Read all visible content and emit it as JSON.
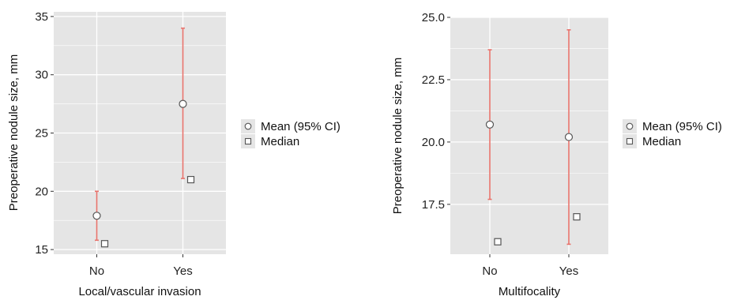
{
  "chart_data": [
    {
      "type": "scatter",
      "xlabel": "Local/vascular invasion",
      "ylabel": "Preoperative nodule size, mm",
      "categories": [
        "No",
        "Yes"
      ],
      "ylim": [
        14.6,
        35.4
      ],
      "yticks": [
        15,
        20,
        25,
        30,
        35
      ],
      "ytick_labels": [
        "15",
        "20",
        "25",
        "30",
        "35"
      ],
      "series": [
        {
          "name": "Mean (95% CI)",
          "values": [
            17.9,
            27.5
          ],
          "ci_low": [
            15.8,
            21.1
          ],
          "ci_high": [
            20.0,
            34.0
          ]
        },
        {
          "name": "Median",
          "values": [
            15.5,
            21.0
          ]
        }
      ],
      "legend_position": "right",
      "grid": true
    },
    {
      "type": "scatter",
      "xlabel": "Multifocality",
      "ylabel": "Preoperative nodule size, mm",
      "categories": [
        "No",
        "Yes"
      ],
      "ylim": [
        15.5,
        25.0
      ],
      "yticks": [
        17.5,
        20.0,
        22.5,
        25.0
      ],
      "ytick_labels": [
        "17.5",
        "20.0",
        "22.5",
        "25.0"
      ],
      "series": [
        {
          "name": "Mean (95% CI)",
          "values": [
            20.7,
            20.2
          ],
          "ci_low": [
            17.7,
            15.9
          ],
          "ci_high": [
            23.7,
            24.5
          ]
        },
        {
          "name": "Median",
          "values": [
            16.0,
            17.0
          ]
        }
      ],
      "legend_position": "right",
      "grid": true
    }
  ],
  "colors": {
    "panel_bg": "#e5e5e5",
    "grid": "#ffffff",
    "errorbar": "#e8736c",
    "marker_fill": "#ffffff",
    "marker_stroke": "#555555"
  }
}
